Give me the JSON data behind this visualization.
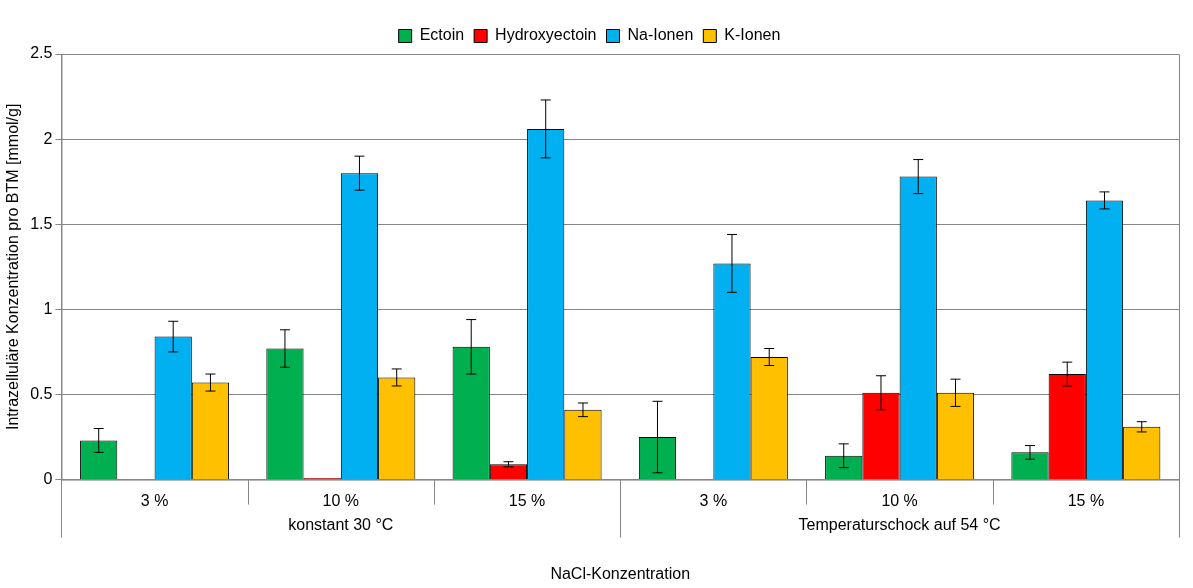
{
  "chart_data": {
    "type": "bar",
    "categories": [
      "3 %",
      "10 %",
      "15 %",
      "3 %",
      "10 %",
      "15 %"
    ],
    "annotations": [
      "konstant 30 °C",
      "Temperaturschock auf 54 °C"
    ],
    "xlabel": "NaCl-Konzentration",
    "ylabel": "Intrazelluläre Konzentration pro BTM [mmol/g]",
    "series": [
      {
        "name": "Ectoin",
        "color": "#00b050",
        "values": [
          0.23,
          0.77,
          0.78,
          0.25,
          0.14,
          0.16
        ],
        "errors": [
          0.07,
          0.11,
          0.16,
          0.21,
          0.07,
          0.04
        ]
      },
      {
        "name": "Hydroxyectoin",
        "color": "#ff0000",
        "values": [
          0,
          0.01,
          0.09,
          0,
          0.51,
          0.62
        ],
        "errors": [
          null,
          null,
          0.015,
          null,
          0.1,
          0.07
        ]
      },
      {
        "name": "Na-Ionen",
        "color": "#00b0f0",
        "values": [
          0.84,
          1.8,
          2.06,
          1.27,
          1.78,
          1.64
        ],
        "errors": [
          0.09,
          0.1,
          0.17,
          0.17,
          0.1,
          0.05
        ]
      },
      {
        "name": "K-Ionen",
        "color": "#ffc000",
        "values": [
          0.57,
          0.6,
          0.41,
          0.72,
          0.51,
          0.31
        ],
        "errors": [
          0.05,
          0.05,
          0.04,
          0.05,
          0.08,
          0.03
        ]
      }
    ],
    "ylim": [
      0,
      2.5
    ],
    "yticks": [
      0,
      0.5,
      1,
      1.5,
      2,
      2.5
    ],
    "grid": "y",
    "legend": "top"
  }
}
